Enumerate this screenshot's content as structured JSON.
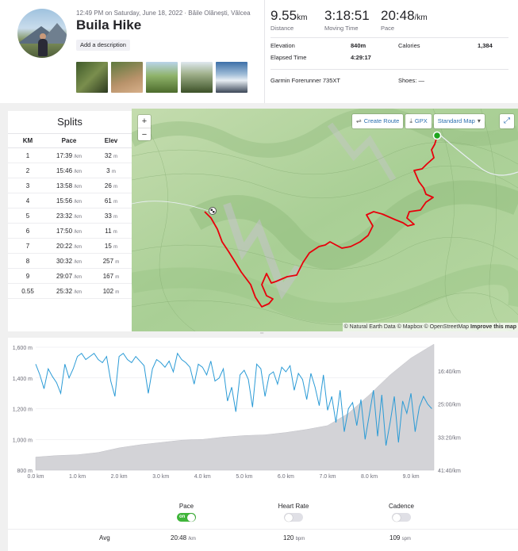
{
  "activity": {
    "meta": "12:49 PM on Saturday, June 18, 2022 · Băile Olănești, Vâlcea",
    "title": "Buila Hike",
    "add_description": "Add a description",
    "photo_count": 5
  },
  "stats": {
    "distance": {
      "value": "9.55",
      "unit": "km",
      "label": "Distance"
    },
    "moving_time": {
      "value": "3:18:51",
      "label": "Moving Time"
    },
    "pace": {
      "value": "20:48",
      "unit": "/km",
      "label": "Pace"
    },
    "elevation": {
      "label": "Elevation",
      "value": "840m"
    },
    "calories": {
      "label": "Calories",
      "value": "1,384"
    },
    "elapsed": {
      "label": "Elapsed Time",
      "value": "4:29:17"
    },
    "device": "Garmin Forerunner 735XT",
    "shoes": {
      "label": "Shoes:",
      "value": "—"
    }
  },
  "splits": {
    "title": "Splits",
    "headers": [
      "KM",
      "Pace",
      "Elev"
    ],
    "pace_unit": "/km",
    "elev_unit": "m",
    "rows": [
      {
        "km": "1",
        "pace": "17:39",
        "elev": "32"
      },
      {
        "km": "2",
        "pace": "15:46",
        "elev": "3"
      },
      {
        "km": "3",
        "pace": "13:58",
        "elev": "26"
      },
      {
        "km": "4",
        "pace": "15:56",
        "elev": "61"
      },
      {
        "km": "5",
        "pace": "23:32",
        "elev": "33"
      },
      {
        "km": "6",
        "pace": "17:50",
        "elev": "11"
      },
      {
        "km": "7",
        "pace": "20:22",
        "elev": "15"
      },
      {
        "km": "8",
        "pace": "30:32",
        "elev": "257"
      },
      {
        "km": "9",
        "pace": "29:07",
        "elev": "167"
      },
      {
        "km": "0.55",
        "pace": "25:32",
        "elev": "102"
      }
    ]
  },
  "map": {
    "zoom_in": "+",
    "zoom_out": "−",
    "create_route": "Create Route",
    "gpx": "GPX",
    "map_style": "Standard Map",
    "attribution_prefix": "© Natural Earth Data © Mapbox © OpenStreetMap",
    "attribution_improve": "Improve this map",
    "route_color": "#e8000b",
    "start_color": "#1ea51e"
  },
  "chart_data": {
    "type": "line",
    "x_ticks": [
      "0.0 km",
      "1.0 km",
      "2.0 km",
      "3.0 km",
      "4.0 km",
      "5.0 km",
      "6.0 km",
      "7.0 km",
      "8.0 km",
      "9.0 km"
    ],
    "xlim": [
      0,
      9.55
    ],
    "elevation_ticks": [
      "1,600 m",
      "1,400 m",
      "1,200 m",
      "1,000 m",
      "800 m"
    ],
    "elevation_range": [
      800,
      1600
    ],
    "pace_ticks": [
      "16:40/km",
      "25:00/km",
      "33:20/km",
      "41:40/km"
    ],
    "elevation": {
      "x": [
        0,
        0.5,
        1.0,
        1.5,
        2.0,
        2.5,
        3.0,
        3.5,
        4.0,
        4.5,
        5.0,
        5.5,
        6.0,
        6.5,
        7.0,
        7.5,
        8.0,
        8.5,
        9.0,
        9.55
      ],
      "y": [
        885,
        895,
        900,
        915,
        945,
        965,
        980,
        995,
        1000,
        1015,
        1025,
        1030,
        1045,
        1065,
        1090,
        1170,
        1290,
        1420,
        1530,
        1620
      ]
    },
    "pace": {
      "x": [
        0,
        0.1,
        0.2,
        0.3,
        0.4,
        0.5,
        0.6,
        0.7,
        0.8,
        0.9,
        1.0,
        1.1,
        1.2,
        1.3,
        1.4,
        1.5,
        1.6,
        1.7,
        1.8,
        1.9,
        2.0,
        2.1,
        2.2,
        2.3,
        2.4,
        2.5,
        2.6,
        2.7,
        2.8,
        2.9,
        3.0,
        3.1,
        3.2,
        3.3,
        3.4,
        3.5,
        3.6,
        3.7,
        3.8,
        3.9,
        4.0,
        4.1,
        4.2,
        4.3,
        4.4,
        4.5,
        4.6,
        4.7,
        4.8,
        4.9,
        5.0,
        5.1,
        5.2,
        5.3,
        5.4,
        5.5,
        5.6,
        5.7,
        5.8,
        5.9,
        6.0,
        6.1,
        6.2,
        6.3,
        6.4,
        6.5,
        6.6,
        6.7,
        6.8,
        6.9,
        7.0,
        7.1,
        7.2,
        7.3,
        7.4,
        7.5,
        7.6,
        7.7,
        7.8,
        7.9,
        8.0,
        8.1,
        8.2,
        8.3,
        8.4,
        8.5,
        8.6,
        8.7,
        8.8,
        8.9,
        9.0,
        9.1,
        9.2,
        9.3,
        9.4,
        9.5
      ],
      "y": [
        1490,
        1420,
        1330,
        1460,
        1410,
        1370,
        1300,
        1490,
        1400,
        1460,
        1540,
        1560,
        1520,
        1540,
        1560,
        1520,
        1500,
        1540,
        1380,
        1280,
        1540,
        1560,
        1520,
        1500,
        1540,
        1510,
        1480,
        1300,
        1460,
        1520,
        1500,
        1470,
        1510,
        1440,
        1560,
        1520,
        1500,
        1470,
        1360,
        1490,
        1470,
        1420,
        1510,
        1380,
        1400,
        1460,
        1250,
        1340,
        1180,
        1420,
        1450,
        1390,
        1210,
        1490,
        1460,
        1280,
        1420,
        1440,
        1360,
        1470,
        1440,
        1480,
        1320,
        1430,
        1390,
        1260,
        1430,
        1340,
        1220,
        1420,
        1190,
        1280,
        1110,
        1320,
        1050,
        1200,
        1240,
        1090,
        1260,
        1000,
        1160,
        1320,
        1020,
        1290,
        960,
        1110,
        1280,
        980,
        1250,
        1170,
        1300,
        1050,
        1210,
        1280,
        1230,
        1200
      ]
    }
  },
  "bottom": {
    "toggles": [
      {
        "label": "Pace",
        "state": "on",
        "on_text": "on"
      },
      {
        "label": "Heart Rate",
        "state": "off"
      },
      {
        "label": "Cadence",
        "state": "off"
      }
    ],
    "avg_label": "Avg",
    "avg_pace": "20:48",
    "avg_pace_unit": "/km",
    "avg_hr": "120",
    "avg_hr_unit": "bpm",
    "avg_cadence": "109",
    "avg_cadence_unit": "spm"
  }
}
